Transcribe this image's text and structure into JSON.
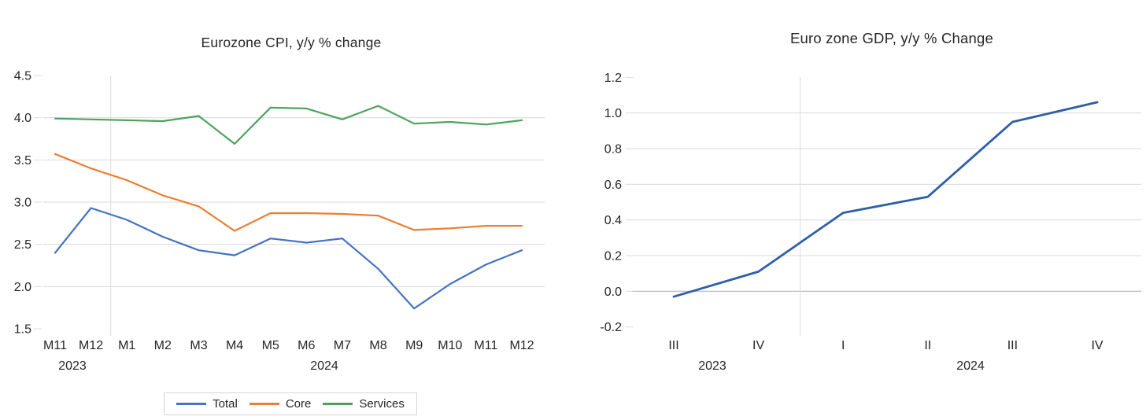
{
  "page": {
    "background": "#ffffff"
  },
  "chart_data": [
    {
      "type": "line",
      "title": "Eurozone CPI, y/y % change",
      "categories": [
        "M11",
        "M12",
        "M1",
        "M2",
        "M3",
        "M4",
        "M5",
        "M6",
        "M7",
        "M8",
        "M9",
        "M10",
        "M11",
        "M12"
      ],
      "year_labels": [
        "2023",
        "2024"
      ],
      "series": [
        {
          "name": "Total",
          "color": "#4472C4",
          "values": [
            2.4,
            2.93,
            2.79,
            2.59,
            2.43,
            2.37,
            2.57,
            2.52,
            2.57,
            2.21,
            1.74,
            2.03,
            2.26,
            2.43
          ]
        },
        {
          "name": "Core",
          "color": "#ED7D31",
          "values": [
            3.57,
            3.4,
            3.26,
            3.08,
            2.95,
            2.66,
            2.87,
            2.87,
            2.86,
            2.84,
            2.67,
            2.69,
            2.72,
            2.72
          ]
        },
        {
          "name": "Services",
          "color": "#4FA25D",
          "values": [
            3.99,
            3.98,
            3.97,
            3.96,
            4.02,
            3.69,
            4.12,
            4.11,
            3.98,
            4.14,
            3.93,
            3.95,
            3.92,
            3.97
          ]
        }
      ],
      "y_axis": {
        "min": 1.5,
        "max": 4.5,
        "step": 0.5,
        "tick_labels": [
          "4.5",
          "4.0",
          "3.5",
          "3.0",
          "2.5",
          "2.0",
          "1.5"
        ]
      },
      "x_axis": {
        "label_rows": 2
      },
      "legend": {
        "position": "bottom",
        "items": [
          "Total",
          "Core",
          "Services"
        ]
      },
      "grid": "horizontal-light",
      "gridline_color": "#dadada",
      "separator_between": [
        "M12 2023",
        "M1 2024"
      ]
    },
    {
      "type": "line",
      "title": "Euro zone GDP, y/y % Change",
      "categories": [
        "III",
        "IV",
        "I",
        "II",
        "III",
        "IV"
      ],
      "year_labels": [
        "2023",
        "2024"
      ],
      "series": [
        {
          "name": "GDP",
          "color": "#2E5EA8",
          "values": [
            -0.03,
            0.11,
            0.44,
            0.53,
            0.95,
            1.06
          ]
        }
      ],
      "y_axis": {
        "min": -0.2,
        "max": 1.2,
        "step": 0.2,
        "tick_labels": [
          "1.2",
          "1.0",
          "0.8",
          "0.6",
          "0.4",
          "0.2",
          "0.0",
          "-0.2"
        ]
      },
      "x_axis": {
        "label_rows": 2
      },
      "legend": null,
      "grid": "horizontal-light",
      "gridline_color": "#dadada",
      "zero_axis_color": "#bdbdbd",
      "separator_between": [
        "IV 2023",
        "I 2024"
      ]
    }
  ]
}
